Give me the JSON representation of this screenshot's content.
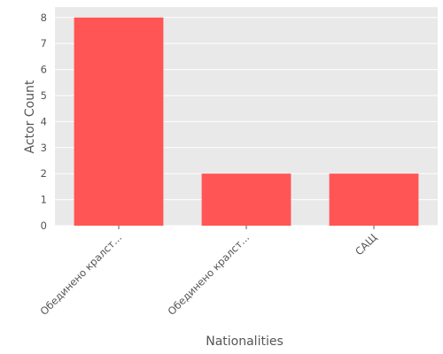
{
  "chart_data": {
    "type": "bar",
    "title": "",
    "xlabel": "Nationalities",
    "ylabel": "Actor Count",
    "categories": [
      "Обединено кралст...",
      "Обединено кралст...",
      "САЩ"
    ],
    "values": [
      8,
      2,
      2
    ],
    "ylim": [
      0,
      8.4
    ],
    "yticks": [
      0,
      1,
      2,
      3,
      4,
      5,
      6,
      7,
      8
    ],
    "grid": true,
    "colors": {
      "bar": "#ff5555",
      "plot_background": "#e9e9e9",
      "grid": "#ffffff",
      "text": "#555555"
    }
  }
}
